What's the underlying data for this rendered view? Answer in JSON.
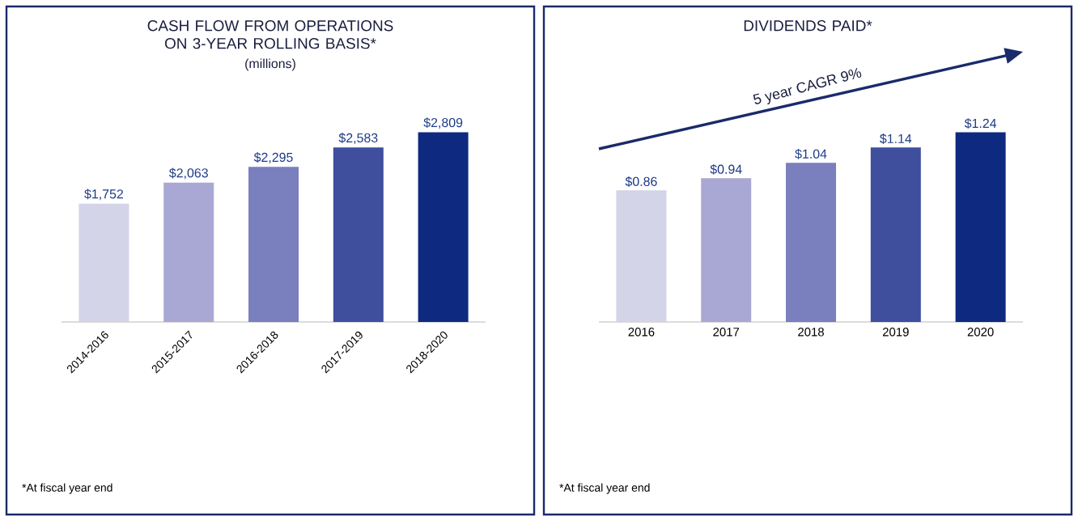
{
  "chart_data": [
    {
      "type": "bar",
      "title": "CASH FLOW FROM OPERATIONS ON 3-YEAR ROLLING BASIS*",
      "subtitle": "(millions)",
      "categories": [
        "2014-2016",
        "2015-2017",
        "2016-2018",
        "2017-2019",
        "2018-2020"
      ],
      "values": [
        1752,
        2063,
        2295,
        2583,
        2809
      ],
      "value_labels": [
        "$1,752",
        "$2,063",
        "$2,295",
        "$2,583",
        "$2,809"
      ],
      "colors": [
        "#d3d4e8",
        "#a9a8d4",
        "#7a7fbd",
        "#3f4f9e",
        "#0e2a80"
      ],
      "annotations": [
        "*At fiscal year end"
      ]
    },
    {
      "type": "bar",
      "title": "DIVIDENDS PAID*",
      "categories": [
        "2016",
        "2017",
        "2018",
        "2019",
        "2020"
      ],
      "values": [
        0.86,
        0.94,
        1.04,
        1.14,
        1.24
      ],
      "value_labels": [
        "$0.86",
        "$0.94",
        "$1.04",
        "$1.14",
        "$1.24"
      ],
      "colors": [
        "#d3d4e8",
        "#a9a8d4",
        "#7a7fbd",
        "#3f4f9e",
        "#0e2a80"
      ],
      "annotations": [
        "*At fiscal year end",
        "5 year CAGR 9%"
      ]
    }
  ]
}
